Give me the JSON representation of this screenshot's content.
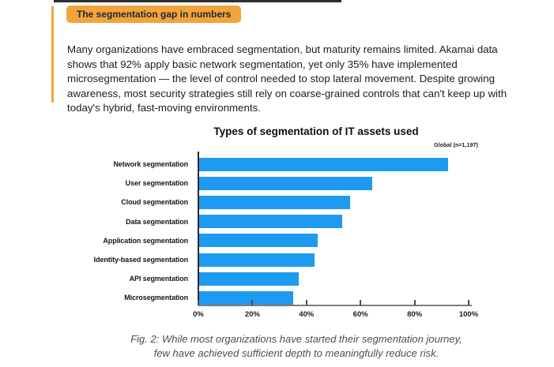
{
  "page": {
    "background": "#ffffff",
    "accent_orange": "#F2A33C",
    "bar_blue": "#1E9BF0"
  },
  "badge": {
    "label": "The segmentation gap in numbers"
  },
  "intro": {
    "text": "Many organizations have embraced segmentation, but maturity remains limited. Akamai data shows that 92% apply basic network segmentation, yet only 35% have implemented microsegmentation — the level of control needed to stop lateral movement. Despite growing awareness, most security strategies still rely on coarse-grained controls that can't keep up with today's hybrid, fast-moving environments."
  },
  "chart_data": {
    "type": "bar",
    "orientation": "horizontal",
    "title": "Types of segmentation of IT assets used",
    "legend": "Global (n=1,197)",
    "legend_position": "top-right",
    "categories": [
      "Network segmentation",
      "User segmentation",
      "Cloud segmentation",
      "Data segmentation",
      "Application segmentation",
      "Identity-based segmentation",
      "API segmentation",
      "Microsegmentation"
    ],
    "values": [
      92,
      64,
      56,
      53,
      44,
      43,
      37,
      35
    ],
    "unit": "%",
    "xlim": [
      0,
      100
    ],
    "x_tick_labels": [
      "0%",
      "20%",
      "40%",
      "60%",
      "80%",
      "100%"
    ],
    "bar_color": "#1E9BF0",
    "grid": false
  },
  "caption": {
    "line1": "Fig. 2: While most organizations have started their segmentation journey,",
    "line2": "few have achieved sufficient depth to meaningfully reduce risk."
  }
}
